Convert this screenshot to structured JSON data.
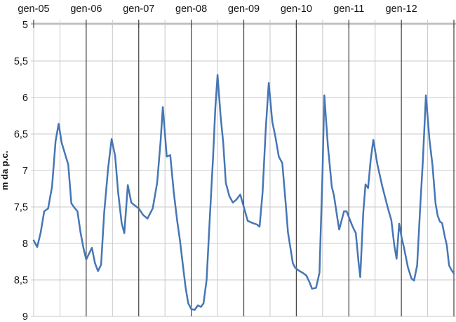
{
  "chart_data": {
    "type": "line",
    "title": "",
    "xlabel": "",
    "ylabel": "m da p.c.",
    "legend": "none",
    "grid": "on",
    "y_axis": {
      "min": 5,
      "max": 9,
      "step": 0.5,
      "inverted": true,
      "tick_labels": [
        "5",
        "5,5",
        "6",
        "6,5",
        "7",
        "7,5",
        "8",
        "8,5",
        "9"
      ]
    },
    "x_axis": {
      "tick_labels": [
        "gen-05",
        "gen-06",
        "gen-07",
        "gen-08",
        "gen-09",
        "gen-10",
        "gen-11",
        "gen-12"
      ],
      "months_total": 96,
      "minor_tick_every_months": 6,
      "x_unit_note": "x in months since gen-05 (0 = gen-05, 96 = gen-13)"
    },
    "series": [
      {
        "color": "#4676b5",
        "points": [
          [
            0,
            7.96
          ],
          [
            0.8,
            8.05
          ],
          [
            1.6,
            7.85
          ],
          [
            2.4,
            7.56
          ],
          [
            3.3,
            7.52
          ],
          [
            4.2,
            7.22
          ],
          [
            5.0,
            6.6
          ],
          [
            5.7,
            6.36
          ],
          [
            6.4,
            6.62
          ],
          [
            7.2,
            6.78
          ],
          [
            7.9,
            6.92
          ],
          [
            8.6,
            7.45
          ],
          [
            9.3,
            7.51
          ],
          [
            10.0,
            7.56
          ],
          [
            10.7,
            7.85
          ],
          [
            11.4,
            8.07
          ],
          [
            12.0,
            8.22
          ],
          [
            13.3,
            8.06
          ],
          [
            14.0,
            8.27
          ],
          [
            14.7,
            8.38
          ],
          [
            15.4,
            8.29
          ],
          [
            16.1,
            7.58
          ],
          [
            17.0,
            6.97
          ],
          [
            17.8,
            6.57
          ],
          [
            18.6,
            6.8
          ],
          [
            19.3,
            7.3
          ],
          [
            20.1,
            7.72
          ],
          [
            20.7,
            7.86
          ],
          [
            21.5,
            7.2
          ],
          [
            22.3,
            7.44
          ],
          [
            23.1,
            7.48
          ],
          [
            24.0,
            7.52
          ],
          [
            25.0,
            7.61
          ],
          [
            26.0,
            7.66
          ],
          [
            27.2,
            7.52
          ],
          [
            28.2,
            7.17
          ],
          [
            29.0,
            6.6
          ],
          [
            29.5,
            6.13
          ],
          [
            30.4,
            6.81
          ],
          [
            31.2,
            6.79
          ],
          [
            32.0,
            7.3
          ],
          [
            32.8,
            7.7
          ],
          [
            33.4,
            7.95
          ],
          [
            34.0,
            8.25
          ],
          [
            34.7,
            8.6
          ],
          [
            35.3,
            8.82
          ],
          [
            36.0,
            8.9
          ],
          [
            36.8,
            8.91
          ],
          [
            37.5,
            8.85
          ],
          [
            38.2,
            8.87
          ],
          [
            38.8,
            8.82
          ],
          [
            39.5,
            8.5
          ],
          [
            40.2,
            7.7
          ],
          [
            41.0,
            6.8
          ],
          [
            41.5,
            6.15
          ],
          [
            42.0,
            5.69
          ],
          [
            42.7,
            6.25
          ],
          [
            43.3,
            6.62
          ],
          [
            43.9,
            7.17
          ],
          [
            44.7,
            7.35
          ],
          [
            45.5,
            7.44
          ],
          [
            46.3,
            7.4
          ],
          [
            47.2,
            7.33
          ],
          [
            48.0,
            7.5
          ],
          [
            48.9,
            7.69
          ],
          [
            50.0,
            7.72
          ],
          [
            51.0,
            7.74
          ],
          [
            51.6,
            7.77
          ],
          [
            52.3,
            7.3
          ],
          [
            53.0,
            6.45
          ],
          [
            53.7,
            5.8
          ],
          [
            54.5,
            6.33
          ],
          [
            55.2,
            6.53
          ],
          [
            56.0,
            6.81
          ],
          [
            56.8,
            6.9
          ],
          [
            57.5,
            7.4
          ],
          [
            58.1,
            7.85
          ],
          [
            59.2,
            8.27
          ],
          [
            59.7,
            8.33
          ],
          [
            60.5,
            8.37
          ],
          [
            61.4,
            8.4
          ],
          [
            62.3,
            8.44
          ],
          [
            63.0,
            8.53
          ],
          [
            63.6,
            8.62
          ],
          [
            64.5,
            8.61
          ],
          [
            65.3,
            8.4
          ],
          [
            66.0,
            7.0
          ],
          [
            66.4,
            5.97
          ],
          [
            67.2,
            6.65
          ],
          [
            68.1,
            7.22
          ],
          [
            68.6,
            7.34
          ],
          [
            69.4,
            7.66
          ],
          [
            69.8,
            7.81
          ],
          [
            70.9,
            7.56
          ],
          [
            71.5,
            7.56
          ],
          [
            72.0,
            7.64
          ],
          [
            72.8,
            7.76
          ],
          [
            73.6,
            7.86
          ],
          [
            74.2,
            8.25
          ],
          [
            74.6,
            8.46
          ],
          [
            75.3,
            7.58
          ],
          [
            75.8,
            7.19
          ],
          [
            76.4,
            7.24
          ],
          [
            77.0,
            6.85
          ],
          [
            77.6,
            6.58
          ],
          [
            78.5,
            6.91
          ],
          [
            79.6,
            7.21
          ],
          [
            80.8,
            7.49
          ],
          [
            81.7,
            7.68
          ],
          [
            82.4,
            8.03
          ],
          [
            82.9,
            8.21
          ],
          [
            83.5,
            7.73
          ],
          [
            84.1,
            7.93
          ],
          [
            84.6,
            8.06
          ],
          [
            85.5,
            8.33
          ],
          [
            86.3,
            8.48
          ],
          [
            86.9,
            8.51
          ],
          [
            87.6,
            8.3
          ],
          [
            88.3,
            7.5
          ],
          [
            88.9,
            6.88
          ],
          [
            89.6,
            5.97
          ],
          [
            90.4,
            6.57
          ],
          [
            91.1,
            6.92
          ],
          [
            91.8,
            7.45
          ],
          [
            92.3,
            7.62
          ],
          [
            92.8,
            7.7
          ],
          [
            93.3,
            7.72
          ],
          [
            93.9,
            7.9
          ],
          [
            94.4,
            8.03
          ],
          [
            94.9,
            8.3
          ],
          [
            95.5,
            8.37
          ],
          [
            96.0,
            8.41
          ]
        ]
      }
    ],
    "colors": {
      "line": "#4676b5",
      "minor_gridline": "#c9c9c9",
      "january_gridline": "#404040",
      "axis_line": "#bdbdbd",
      "tick_label_text": "#141414"
    }
  }
}
